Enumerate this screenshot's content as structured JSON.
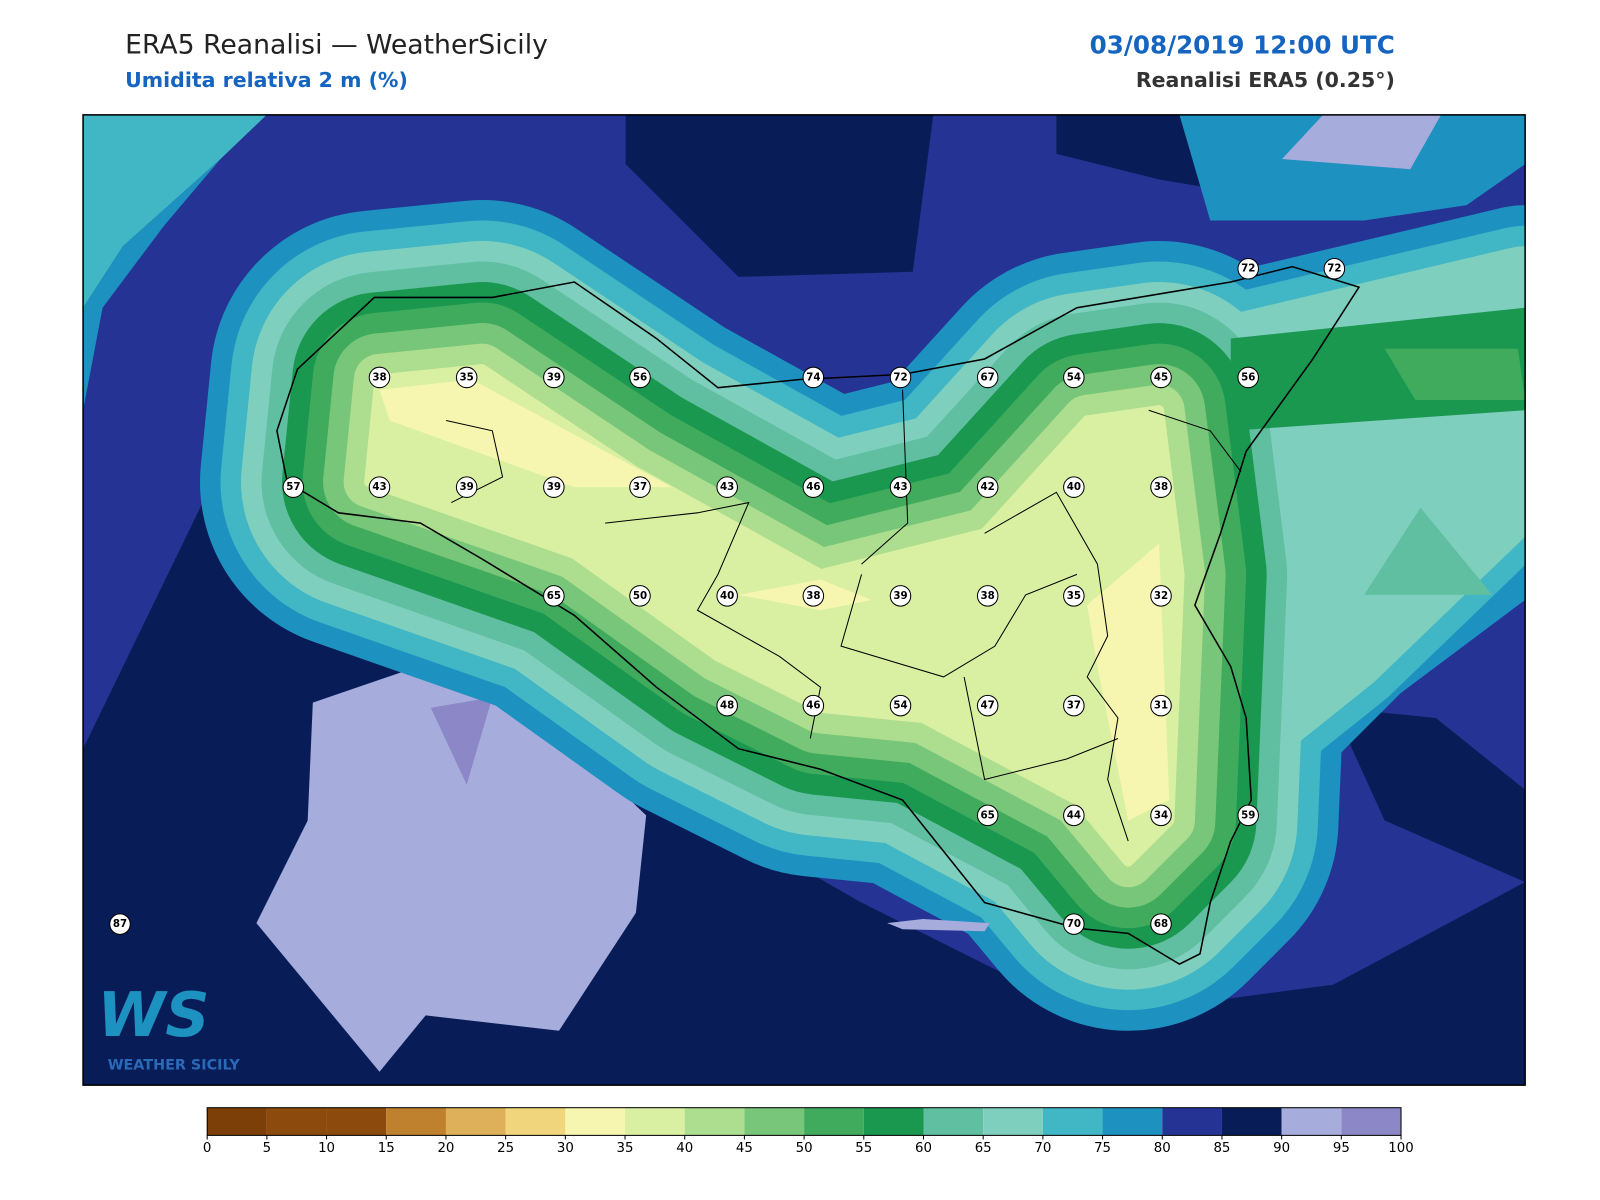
{
  "header": {
    "title": "ERA5 Reanalisi — WeatherSicily",
    "subtitle": "Umidita relativa 2 m (%)",
    "datetime": "03/08/2019 12:00 UTC",
    "source": "Reanalisi ERA5 (0.25°)"
  },
  "stations": [
    72,
    72,
    38,
    35,
    39,
    56,
    74,
    72,
    67,
    54,
    45,
    56,
    57,
    43,
    39,
    39,
    37,
    43,
    46,
    43,
    42,
    40,
    38,
    65,
    50,
    40,
    38,
    39,
    38,
    35,
    32,
    48,
    46,
    54,
    47,
    37,
    31,
    65,
    44,
    34,
    59,
    87,
    70,
    68
  ],
  "colorbar": {
    "ticks": [
      0,
      5,
      10,
      15,
      20,
      25,
      30,
      35,
      40,
      45,
      50,
      55,
      60,
      65,
      70,
      75,
      80,
      85,
      90,
      95,
      100
    ],
    "colors": [
      "#7b3f07",
      "#8d4a0d",
      "#8d4a0d",
      "#bf812d",
      "#dfb05a",
      "#f0d57c",
      "#f6f6b0",
      "#d9f0a3",
      "#addd8e",
      "#78c679",
      "#41ab5d",
      "#1a9850",
      "#5fbfa0",
      "#7fcfbf",
      "#41b6c4",
      "#1d91c0",
      "#253494",
      "#081d58",
      "#a6acdc",
      "#8c87c6"
    ]
  },
  "logo": {
    "mark": "WS",
    "name": "WEATHER SICILY"
  }
}
